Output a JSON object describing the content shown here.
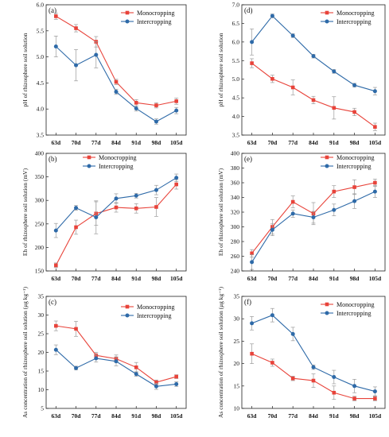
{
  "series_style": {
    "monocropping_color": "#e8433a",
    "intercropping_color": "#2e6aa8",
    "error_bar_color": "#9a9a9a"
  },
  "chart_data": [
    {
      "type": "line",
      "panel": "(a)",
      "categories": [
        "63d",
        "70d",
        "77d",
        "84d",
        "91d",
        "98d",
        "105d"
      ],
      "ylabel": "pH of rhizosphere soil solution",
      "ylim": [
        3.5,
        6.0
      ],
      "yticks": [
        "3.5",
        "4.0",
        "4.5",
        "5.0",
        "5.5",
        "6.0"
      ],
      "legend": "top-right",
      "series": [
        {
          "name": "Monocropping",
          "values": [
            5.78,
            5.55,
            5.29,
            4.52,
            4.12,
            4.07,
            4.15
          ],
          "errors": [
            0.06,
            0.07,
            0.1,
            0.05,
            0.06,
            0.05,
            0.06
          ]
        },
        {
          "name": "Intercropping",
          "values": [
            5.2,
            4.84,
            5.04,
            4.33,
            4.01,
            3.76,
            3.97
          ],
          "errors": [
            0.2,
            0.3,
            0.25,
            0.05,
            0.05,
            0.05,
            0.06
          ]
        }
      ]
    },
    {
      "type": "line",
      "panel": "(d)",
      "categories": [
        "63d",
        "70d",
        "77d",
        "84d",
        "91d",
        "98d",
        "105d"
      ],
      "ylabel": "pH of rhizosphere soil solution",
      "ylim": [
        3.5,
        7.0
      ],
      "yticks": [
        "3.5",
        "4.0",
        "4.5",
        "5.0",
        "5.5",
        "6.0",
        "6.5",
        "7.0"
      ],
      "legend": "top-right",
      "series": [
        {
          "name": "Monocropping",
          "values": [
            5.43,
            5.01,
            4.78,
            4.44,
            4.23,
            4.12,
            3.72
          ],
          "errors": [
            0.12,
            0.1,
            0.2,
            0.1,
            0.3,
            0.1,
            0.1
          ]
        },
        {
          "name": "Intercropping",
          "values": [
            6.0,
            6.7,
            6.17,
            5.62,
            5.21,
            4.84,
            4.68
          ],
          "errors": [
            0.35,
            0.05,
            0.05,
            0.05,
            0.05,
            0.05,
            0.1
          ]
        }
      ]
    },
    {
      "type": "line",
      "panel": "(b)",
      "categories": [
        "63d",
        "70d",
        "77d",
        "84d",
        "91d",
        "98d",
        "105d"
      ],
      "ylabel": "Eh of rhizosphere soil solution (mV)",
      "ylim": [
        150,
        400
      ],
      "yticks": [
        "150",
        "200",
        "250",
        "300",
        "350",
        "400"
      ],
      "legend": "top-left",
      "series": [
        {
          "name": "Monocropping",
          "values": [
            162,
            243,
            272,
            285,
            283,
            286,
            334
          ],
          "errors": [
            5,
            15,
            25,
            10,
            10,
            20,
            10
          ]
        },
        {
          "name": "Intercropping",
          "values": [
            236,
            284,
            264,
            304,
            310,
            322,
            348
          ],
          "errors": [
            15,
            5,
            35,
            10,
            5,
            10,
            8
          ]
        }
      ]
    },
    {
      "type": "line",
      "panel": "(e)",
      "categories": [
        "63d",
        "70d",
        "77d",
        "84d",
        "91d",
        "98d",
        "105d"
      ],
      "ylabel": "Eh of rhizosphere soil solution (mV)",
      "ylim": [
        240,
        400
      ],
      "yticks": [
        "240",
        "260",
        "280",
        "300",
        "320",
        "340",
        "360",
        "380",
        "400"
      ],
      "legend": "top-right",
      "series": [
        {
          "name": "Monocropping",
          "values": [
            264,
            300,
            334,
            318,
            348,
            354,
            360
          ],
          "errors": [
            5,
            10,
            8,
            15,
            8,
            10,
            5
          ]
        },
        {
          "name": "Intercropping",
          "values": [
            252,
            296,
            318,
            313,
            323,
            335,
            348
          ],
          "errors": [
            10,
            8,
            5,
            8,
            8,
            10,
            8
          ]
        }
      ]
    },
    {
      "type": "line",
      "panel": "(c)",
      "categories": [
        "63d",
        "70d",
        "77d",
        "84d",
        "91d",
        "98d",
        "105d"
      ],
      "ylabel": "As concentration of rhizosphere soil solution (μg kg⁻¹)",
      "ylim": [
        5,
        35
      ],
      "yticks": [
        "5",
        "10",
        "15",
        "20",
        "25",
        "30",
        "35"
      ],
      "legend": "top-right",
      "series": [
        {
          "name": "Monocropping",
          "values": [
            27.1,
            26.3,
            19.2,
            18.3,
            16.0,
            12.0,
            13.5
          ],
          "errors": [
            1.3,
            2.0,
            0.8,
            1.0,
            1.3,
            0.6,
            0.5
          ]
        },
        {
          "name": "Intercropping",
          "values": [
            20.7,
            15.8,
            18.4,
            17.6,
            14.2,
            10.9,
            11.5
          ],
          "errors": [
            1.3,
            0.5,
            1.0,
            1.2,
            0.6,
            0.8,
            0.6
          ]
        }
      ]
    },
    {
      "type": "line",
      "panel": "(f)",
      "categories": [
        "63d",
        "70d",
        "77d",
        "84d",
        "91d",
        "98d",
        "105d"
      ],
      "ylabel": "As concentration of rhizosphere soil solution (μg kg⁻¹)",
      "ylim": [
        10,
        35
      ],
      "yticks": [
        "10",
        "15",
        "20",
        "25",
        "30",
        "35"
      ],
      "legend": "top-right",
      "series": [
        {
          "name": "Monocropping",
          "values": [
            22.2,
            20.2,
            16.7,
            16.2,
            13.5,
            12.2,
            12.2
          ],
          "errors": [
            2.2,
            0.8,
            0.5,
            1.5,
            1.5,
            0.5,
            0.5
          ]
        },
        {
          "name": "Intercropping",
          "values": [
            29.0,
            30.8,
            26.6,
            19.2,
            17.0,
            15.0,
            13.8
          ],
          "errors": [
            1.5,
            1.5,
            1.5,
            0.5,
            1.5,
            1.5,
            1.0
          ]
        }
      ]
    }
  ]
}
